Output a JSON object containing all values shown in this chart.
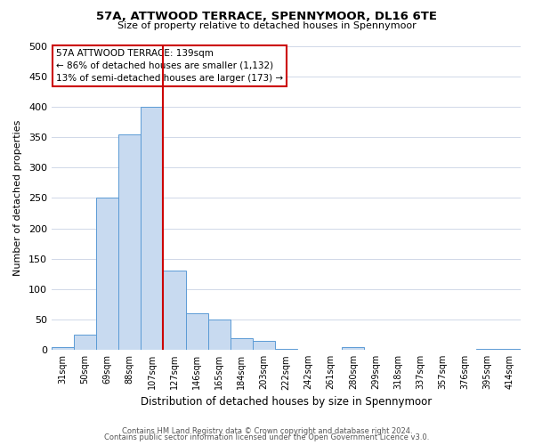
{
  "title": "57A, ATTWOOD TERRACE, SPENNYMOOR, DL16 6TE",
  "subtitle": "Size of property relative to detached houses in Spennymoor",
  "xlabel": "Distribution of detached houses by size in Spennymoor",
  "ylabel": "Number of detached properties",
  "footer_line1": "Contains HM Land Registry data © Crown copyright and database right 2024.",
  "footer_line2": "Contains public sector information licensed under the Open Government Licence v3.0.",
  "bin_labels": [
    "31sqm",
    "50sqm",
    "69sqm",
    "88sqm",
    "107sqm",
    "127sqm",
    "146sqm",
    "165sqm",
    "184sqm",
    "203sqm",
    "222sqm",
    "242sqm",
    "261sqm",
    "280sqm",
    "299sqm",
    "318sqm",
    "337sqm",
    "357sqm",
    "376sqm",
    "395sqm",
    "414sqm"
  ],
  "bar_values": [
    5,
    25,
    250,
    355,
    400,
    130,
    60,
    50,
    20,
    15,
    2,
    0,
    0,
    5,
    0,
    0,
    0,
    0,
    0,
    2,
    2
  ],
  "bar_color": "#c8daf0",
  "bar_edge_color": "#5b9bd5",
  "ylim": [
    0,
    500
  ],
  "yticks": [
    0,
    50,
    100,
    150,
    200,
    250,
    300,
    350,
    400,
    450,
    500
  ],
  "red_line_after_bin": 5,
  "annotation_title": "57A ATTWOOD TERRACE: 139sqm",
  "annotation_line2": "← 86% of detached houses are smaller (1,132)",
  "annotation_line3": "13% of semi-detached houses are larger (173) →",
  "annotation_box_color": "#ffffff",
  "annotation_border_color": "#cc0000",
  "background_color": "#ffffff",
  "grid_color": "#d0d8e8"
}
